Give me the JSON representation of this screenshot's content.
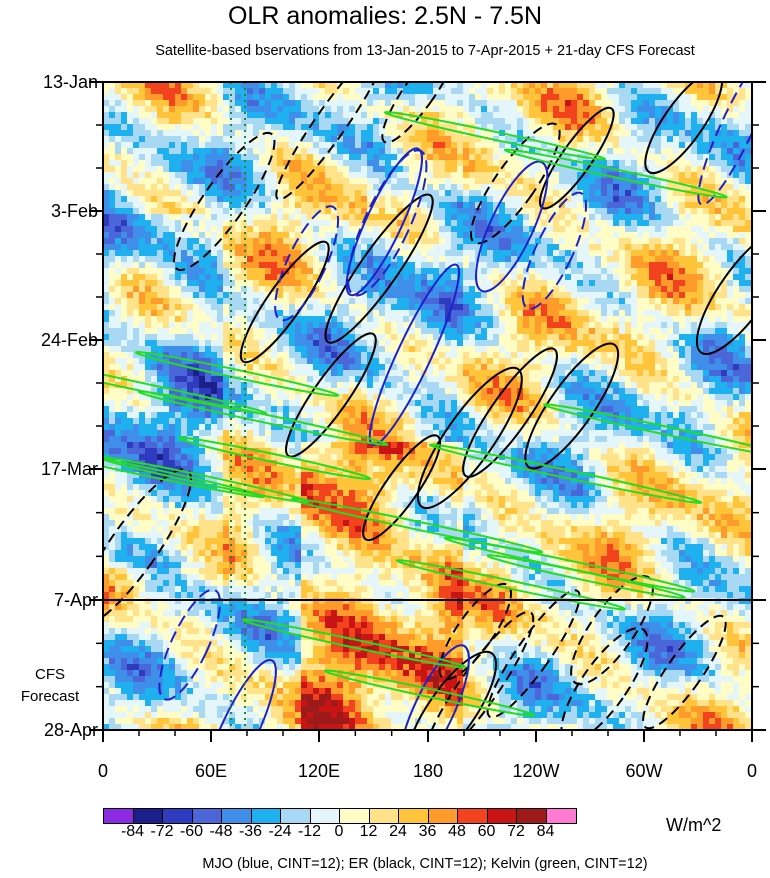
{
  "chart_data": {
    "type": "heatmap",
    "title": "OLR anomalies: 2.5N - 7.5N",
    "subtitle": "Satellite-based bservations from 13-Jan-2015 to 7-Apr-2015 + 21-day CFS Forecast",
    "x_ticks": [
      "0",
      "60E",
      "120E",
      "180",
      "120W",
      "60W",
      "0"
    ],
    "y_ticks": [
      "13-Jan",
      "3-Feb",
      "24-Feb",
      "17-Mar",
      "7-Apr",
      "28-Apr"
    ],
    "forecast_label_lines": [
      "CFS",
      "Forecast"
    ],
    "forecast_start": "7-Apr",
    "colorbar": {
      "labels": [
        "-84",
        "-72",
        "-60",
        "-48",
        "-36",
        "-24",
        "-12",
        "0",
        "12",
        "24",
        "36",
        "48",
        "60",
        "72",
        "84"
      ],
      "colors": [
        "#8a2be2",
        "#1c1f8a",
        "#2e3bbf",
        "#4a66d9",
        "#3f8fea",
        "#1fb0f0",
        "#a9d8f5",
        "#e4f6f9",
        "#fffcc6",
        "#ffe28a",
        "#ffc43a",
        "#ff9b2a",
        "#f2421e",
        "#c81414",
        "#9c1a1a",
        "#ff7ad0"
      ],
      "units": "W/m^2"
    },
    "contour_legend": "MJO (blue, CINT=12); ER (black, CINT=12); Kelvin (green, CINT=12)",
    "contour_colors": {
      "mjo": "#1a22cc",
      "er": "#000000",
      "kelvin": "#22dd22"
    },
    "reference_lines": [
      {
        "lon": "70E",
        "color": "#228833",
        "style": "dotted"
      },
      {
        "lon": "80E",
        "color": "#228833",
        "style": "dotted"
      }
    ]
  }
}
